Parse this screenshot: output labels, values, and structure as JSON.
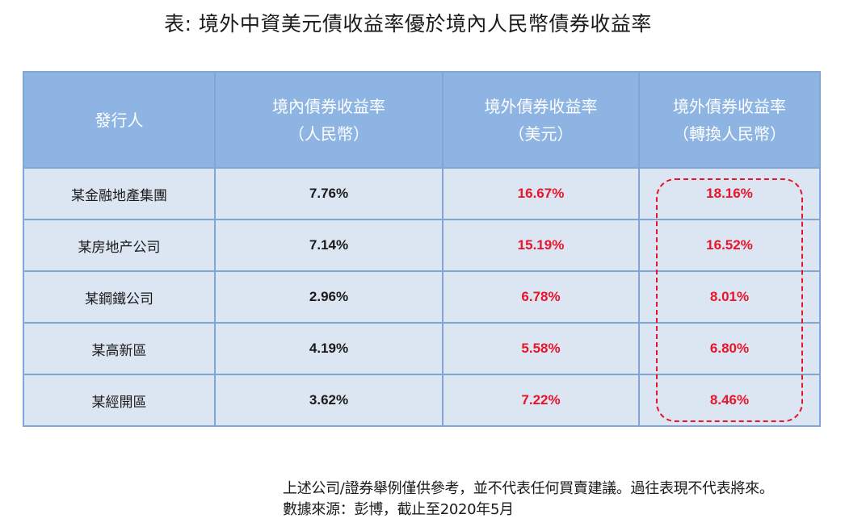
{
  "title": "表: 境外中資美元債收益率優於境內人民幣債券收益率",
  "table": {
    "headers": [
      {
        "line1": "發行人",
        "line2": ""
      },
      {
        "line1": "境內債券收益率",
        "line2": "（人民幣）"
      },
      {
        "line1": "境外債券收益率",
        "line2": "（美元）"
      },
      {
        "line1": "境外債券收益率",
        "line2": "（轉換人民幣）"
      }
    ],
    "rows": [
      {
        "issuer": "某金融地產集團",
        "domestic": "7.76%",
        "offshore_usd": "16.67%",
        "offshore_cny": "18.16%"
      },
      {
        "issuer": "某房地产公司",
        "domestic": "7.14%",
        "offshore_usd": "15.19%",
        "offshore_cny": "16.52%"
      },
      {
        "issuer": "某鋼鐵公司",
        "domestic": "2.96%",
        "offshore_usd": "6.78%",
        "offshore_cny": "8.01%"
      },
      {
        "issuer": "某高新區",
        "domestic": "4.19%",
        "offshore_usd": "5.58%",
        "offshore_cny": "6.80%"
      },
      {
        "issuer": "某經開區",
        "domestic": "3.62%",
        "offshore_usd": "7.22%",
        "offshore_cny": "8.46%"
      }
    ]
  },
  "notes": {
    "disclaimer": "上述公司/證券舉例僅供參考，並不代表任何買賣建議。過往表現不代表將來。",
    "source": "數據來源：彭博，截止至2020年5月"
  },
  "colors": {
    "header_bg": "#8db4e2",
    "cell_bg": "#dce6f2",
    "highlight_red": "#e8142a"
  },
  "chart_data": {
    "type": "table",
    "title": "表: 境外中資美元債收益率優於境內人民幣債券收益率",
    "columns": [
      "發行人",
      "境內債券收益率（人民幣）",
      "境外債券收益率（美元）",
      "境外債券收益率（轉換人民幣）"
    ],
    "rows": [
      [
        "某金融地產集團",
        7.76,
        16.67,
        18.16
      ],
      [
        "某房地产公司",
        7.14,
        15.19,
        16.52
      ],
      [
        "某鋼鐵公司",
        2.96,
        6.78,
        8.01
      ],
      [
        "某高新區",
        4.19,
        5.58,
        6.8
      ],
      [
        "某經開區",
        3.62,
        7.22,
        8.46
      ]
    ],
    "unit": "%"
  }
}
